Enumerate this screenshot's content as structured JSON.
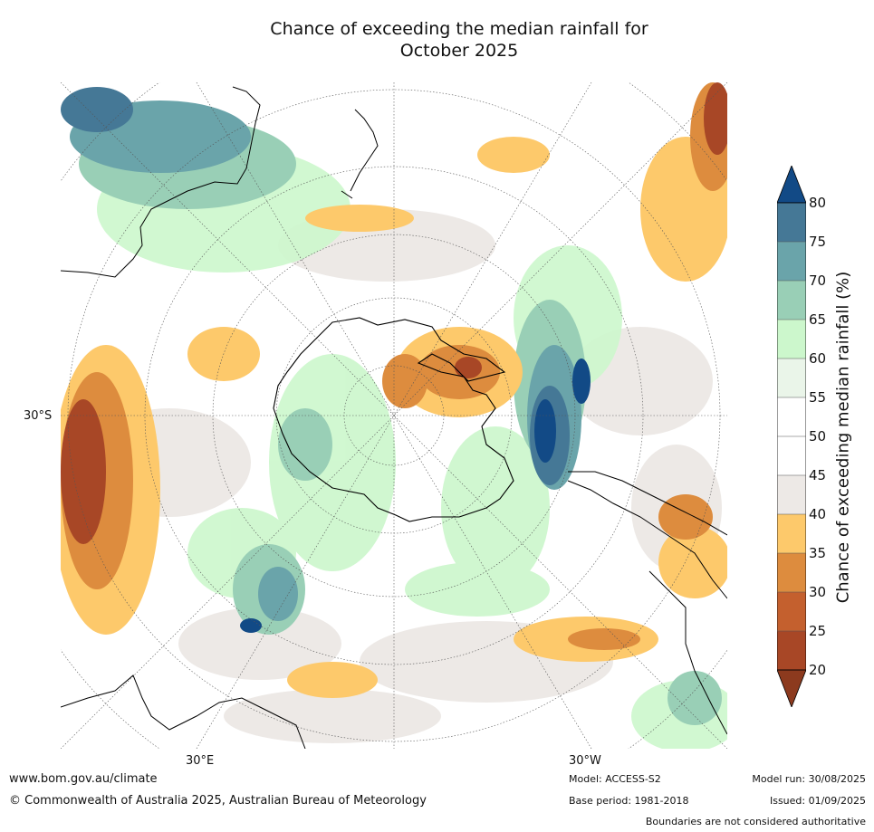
{
  "title_line1": "Chance of exceeding the median rainfall for",
  "title_line2": "October 2025",
  "map": {
    "lat_label": "30°S",
    "lon_labels": [
      "30°E",
      "30°W"
    ],
    "colors": {
      "ocean_bg": "#ffffff",
      "coast": "#000000",
      "grid": "#555555"
    }
  },
  "colorbar": {
    "title": "Chance of exceeding median rainfall (%)",
    "ticks": [
      "20",
      "25",
      "30",
      "35",
      "40",
      "45",
      "50",
      "55",
      "60",
      "65",
      "70",
      "75",
      "80"
    ],
    "bands": [
      {
        "range": "<20",
        "color": "#8c3a1e"
      },
      {
        "range": "20-25",
        "color": "#a84726"
      },
      {
        "range": "25-30",
        "color": "#c4602e"
      },
      {
        "range": "30-35",
        "color": "#dd8c3e"
      },
      {
        "range": "35-40",
        "color": "#fdc96b"
      },
      {
        "range": "40-45",
        "color": "#ede9e6"
      },
      {
        "range": "45-50",
        "color": "#ffffff"
      },
      {
        "range": "50-55",
        "color": "#ffffff"
      },
      {
        "range": "55-60",
        "color": "#eaf5e9"
      },
      {
        "range": "60-65",
        "color": "#ccf7cc"
      },
      {
        "range": "65-70",
        "color": "#99cfb6"
      },
      {
        "range": "70-75",
        "color": "#6aa4aa"
      },
      {
        "range": "75-80",
        "color": "#457896"
      },
      {
        "range": ">80",
        "color": "#124a86"
      }
    ]
  },
  "footer": {
    "website": "www.bom.gov.au/climate",
    "copyright": "© Commonwealth of Australia 2025, Australian Bureau of Meteorology",
    "model": "Model: ACCESS-S2",
    "base_period": "Base period: 1981-2018",
    "model_run": "Model run: 30/08/2025",
    "issued": "Issued: 01/09/2025",
    "disclaimer": "Boundaries are not considered authoritative"
  }
}
